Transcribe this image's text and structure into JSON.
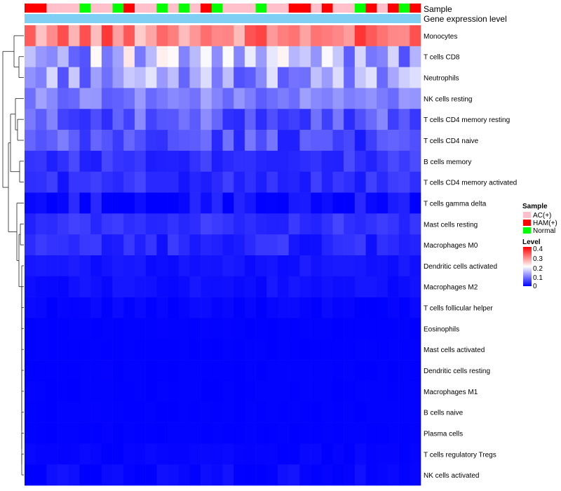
{
  "chart_data": {
    "type": "heatmap",
    "title": "",
    "annotation_tracks": [
      "Sample",
      "Gene expression level"
    ],
    "sample_groups": [
      "AC(+)",
      "HAM(+)",
      "Normal"
    ],
    "sample_group_colors": {
      "AC(+)": "#FFC0CB",
      "HAM(+)": "#FF0000",
      "Normal": "#00FF00"
    },
    "samples": [
      "HAM(+)",
      "HAM(+)",
      "AC(+)",
      "AC(+)",
      "AC(+)",
      "Normal",
      "AC(+)",
      "AC(+)",
      "Normal",
      "HAM(+)",
      "AC(+)",
      "AC(+)",
      "Normal",
      "AC(+)",
      "Normal",
      "AC(+)",
      "HAM(+)",
      "Normal",
      "AC(+)",
      "AC(+)",
      "AC(+)",
      "Normal",
      "AC(+)",
      "AC(+)",
      "HAM(+)",
      "HAM(+)",
      "AC(+)",
      "HAM(+)",
      "AC(+)",
      "AC(+)",
      "Normal",
      "HAM(+)",
      "AC(+)",
      "HAM(+)",
      "Normal",
      "HAM(+)"
    ],
    "gene_expression_color": "#7FCFF5",
    "rows": [
      "Monocytes",
      "T cells CD8",
      "Neutrophils",
      "NK cells resting",
      "T cells CD4 memory resting",
      "T cells CD4 naive",
      "B cells memory",
      "T cells CD4 memory activated",
      "T cells gamma delta",
      "Mast cells resting",
      "Macrophages M0",
      "Dendritic cells activated",
      "Macrophages M2",
      "T cells follicular helper",
      "Eosinophils",
      "Mast cells activated",
      "Dendritic cells resting",
      "Macrophages M1",
      "B cells naive",
      "Plasma cells",
      "T cells regulatory  Tregs",
      "NK cells activated"
    ],
    "row_base_values": [
      0.3,
      0.14,
      0.12,
      0.1,
      0.07,
      0.06,
      0.04,
      0.035,
      0.005,
      0.04,
      0.03,
      0.015,
      0.012,
      0.004,
      0.001,
      0.001,
      0.001,
      0.001,
      0.001,
      0.001,
      0.003,
      0.006
    ],
    "row_variation": [
      0.06,
      0.08,
      0.06,
      0.03,
      0.04,
      0.04,
      0.02,
      0.02,
      0.03,
      0.015,
      0.02,
      0.008,
      0.008,
      0.005,
      0.001,
      0.001,
      0.001,
      0.001,
      0.001,
      0.001,
      0.005,
      0.01
    ],
    "dendrogram_merge_order": [
      [
        0,
        1
      ],
      [
        2,
        3
      ],
      [
        4,
        5
      ],
      [
        6,
        7
      ],
      [
        8,
        9
      ],
      [
        10,
        11
      ]
    ],
    "legend": {
      "sample_title": "Sample",
      "sample_entries": [
        "AC(+)",
        "HAM(+)",
        "Normal"
      ],
      "level_title": "Level",
      "level_ticks": [
        "0.4",
        "0.3",
        "0.2",
        "0.1",
        "0"
      ],
      "level_range": [
        0,
        0.4
      ]
    },
    "color_scale": {
      "low": "#0000FF",
      "mid": "#FFFFFF",
      "high": "#FF0000",
      "mid_value": 0.2
    }
  }
}
